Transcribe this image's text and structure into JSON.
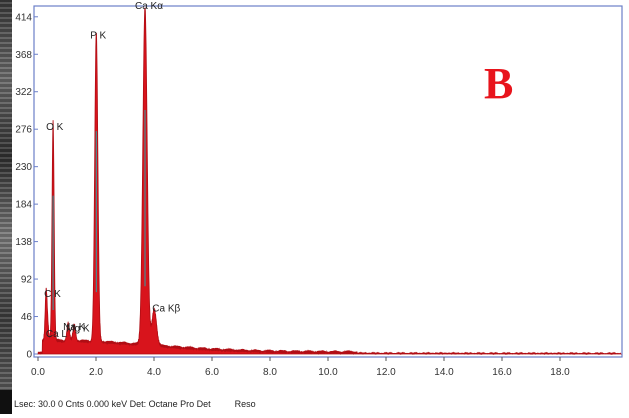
{
  "chart_data": {
    "type": "area",
    "title": "",
    "xlabel": "",
    "ylabel": "",
    "xlim": [
      0,
      20
    ],
    "ylim": [
      0,
      440
    ],
    "x_ticks": [
      "0.0",
      "2.0",
      "4.0",
      "6.0",
      "8.0",
      "10.0",
      "12.0",
      "14.0",
      "16.0",
      "18.0"
    ],
    "y_ticks": [
      "0",
      "46",
      "92",
      "138",
      "184",
      "230",
      "276",
      "322",
      "368",
      "414"
    ],
    "colors": {
      "fill": "#d8141c",
      "stroke": "#b00d14",
      "axis": "#6b7fc8",
      "highlight": "#2aa3a8"
    },
    "peaks": [
      {
        "label": "C K",
        "x": 0.28,
        "y": 60
      },
      {
        "label": "Ca L",
        "x": 0.34,
        "y": 16
      },
      {
        "label": "O K",
        "x": 0.52,
        "y": 270
      },
      {
        "label": "Na K",
        "x": 1.04,
        "y": 22
      },
      {
        "label": "Mg K",
        "x": 1.25,
        "y": 20
      },
      {
        "label": "P K",
        "x": 2.01,
        "y": 380
      },
      {
        "label": "Ca Kα",
        "x": 3.69,
        "y": 416
      },
      {
        "label": "Ca Kβ",
        "x": 4.01,
        "y": 45
      }
    ]
  },
  "panel_letter": "B",
  "footer": {
    "info": "Lsec: 30.0 0 Cnts  0.000 keV Det: Octane Pro Det",
    "reso": "Reso"
  }
}
